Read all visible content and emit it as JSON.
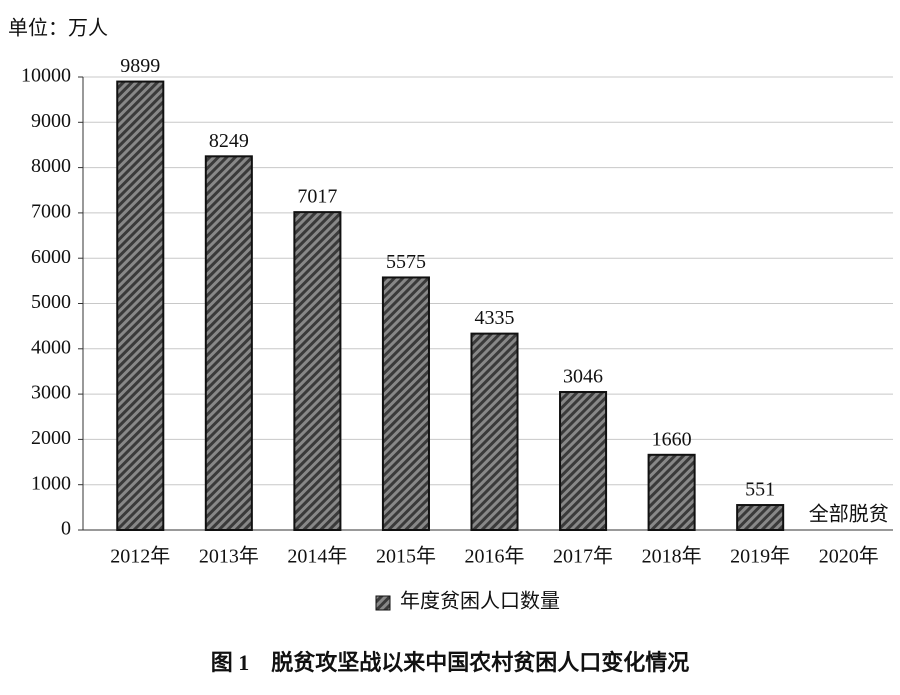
{
  "chart_data": {
    "type": "bar",
    "title": "图 1　脱贫攻坚战以来中国农村贫困人口变化情况",
    "y_axis_label": "单位：万人",
    "categories": [
      "2012年",
      "2013年",
      "2014年",
      "2015年",
      "2016年",
      "2017年",
      "2018年",
      "2019年",
      "2020年"
    ],
    "series": [
      {
        "name": "年度贫困人口数量",
        "color": "#5a5a5a",
        "values": [
          9899,
          8249,
          7017,
          5575,
          4335,
          3046,
          1660,
          551,
          null
        ]
      }
    ],
    "annotation": "全部脱贫",
    "ylim": [
      0,
      10000
    ],
    "yticks": [
      0,
      1000,
      2000,
      3000,
      4000,
      5000,
      6000,
      7000,
      8000,
      9000,
      10000
    ],
    "grid": true
  }
}
